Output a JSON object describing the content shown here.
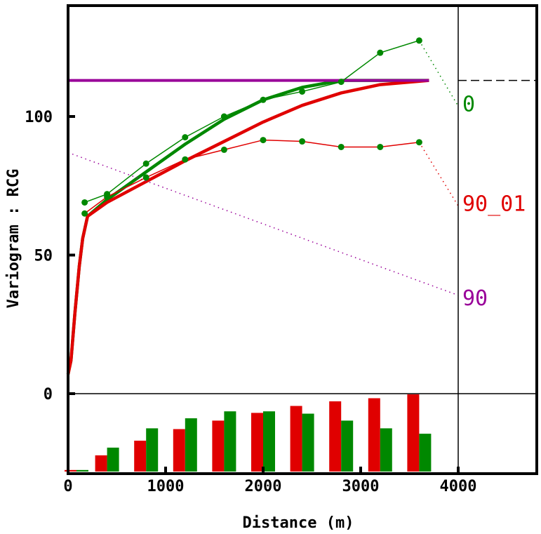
{
  "chart_data": {
    "type": "line",
    "title": "",
    "xlabel": "Distance (m)",
    "ylabel": "Variogram : RCG",
    "xlim": [
      0,
      4800
    ],
    "ylim": [
      -29,
      140
    ],
    "x_ticks": [
      "0",
      "1000",
      "2000",
      "3000",
      "4000"
    ],
    "y_ticks": [
      "0",
      "50",
      "100"
    ],
    "sill": 113,
    "max_lag_line": 4000,
    "colors": {
      "dir0": "#008800",
      "dir90_01": "#e00000",
      "dir90": "#990099"
    },
    "series": [
      {
        "name": "0",
        "kind": "experimental",
        "color": "#008800",
        "x": [
          170,
          400,
          800,
          1200,
          1600,
          2000,
          2400,
          2800,
          3200,
          3600
        ],
        "y": [
          69,
          72,
          83,
          92.5,
          100,
          106,
          109,
          112.5,
          123,
          127.4
        ]
      },
      {
        "name": "90_01",
        "kind": "experimental",
        "color": "#e00000",
        "point_color": "#008800",
        "x": [
          170,
          400,
          800,
          1200,
          1600,
          2000,
          2400,
          2800,
          3200,
          3600
        ],
        "y": [
          65,
          71,
          78,
          84.5,
          88,
          91.5,
          91,
          89,
          89,
          90.7
        ]
      },
      {
        "name": "0 model",
        "kind": "model",
        "color": "#008800",
        "x": [
          0,
          30,
          70,
          115,
          150,
          200,
          400,
          800,
          1200,
          1600,
          2000,
          2400,
          2800,
          3700
        ],
        "y": [
          7,
          12,
          29,
          46,
          56,
          64,
          70,
          80,
          90,
          99,
          106,
          110.5,
          113,
          113
        ]
      },
      {
        "name": "90_01 model",
        "kind": "model",
        "color": "#e00000",
        "x": [
          0,
          30,
          70,
          115,
          150,
          200,
          400,
          800,
          1200,
          1600,
          2000,
          2400,
          2800,
          3200,
          3700
        ],
        "y": [
          7,
          12,
          29,
          46,
          56,
          64,
          69,
          76.5,
          84,
          91,
          98,
          104,
          108.5,
          111.5,
          113
        ]
      },
      {
        "name": "90",
        "kind": "model",
        "color": "#990099",
        "x": [
          0,
          0,
          3700
        ],
        "y": [
          59,
          113,
          113
        ]
      },
      {
        "name": "90 trend",
        "kind": "dotted",
        "color": "#990099",
        "x": [
          0,
          4000
        ],
        "y": [
          87,
          35.5
        ]
      }
    ],
    "labels": [
      {
        "text": "0",
        "color": "#008800",
        "y": 105
      },
      {
        "text": "90_01",
        "color": "#e00000",
        "y": 69
      },
      {
        "text": "90",
        "color": "#990099",
        "y": 35
      }
    ],
    "histogram": {
      "unit": "percent_of_max",
      "lags": [
        0,
        400,
        800,
        1200,
        1600,
        2000,
        2400,
        2800,
        3200,
        3600
      ],
      "series": [
        {
          "name": "90_01",
          "color": "#e00000",
          "values": [
            2,
            21,
            40,
            55,
            66,
            76,
            85,
            91,
            95,
            100
          ]
        },
        {
          "name": "0",
          "color": "#008800",
          "values": [
            2,
            31,
            56,
            69,
            78,
            78,
            75,
            66,
            56,
            49
          ]
        }
      ]
    }
  }
}
